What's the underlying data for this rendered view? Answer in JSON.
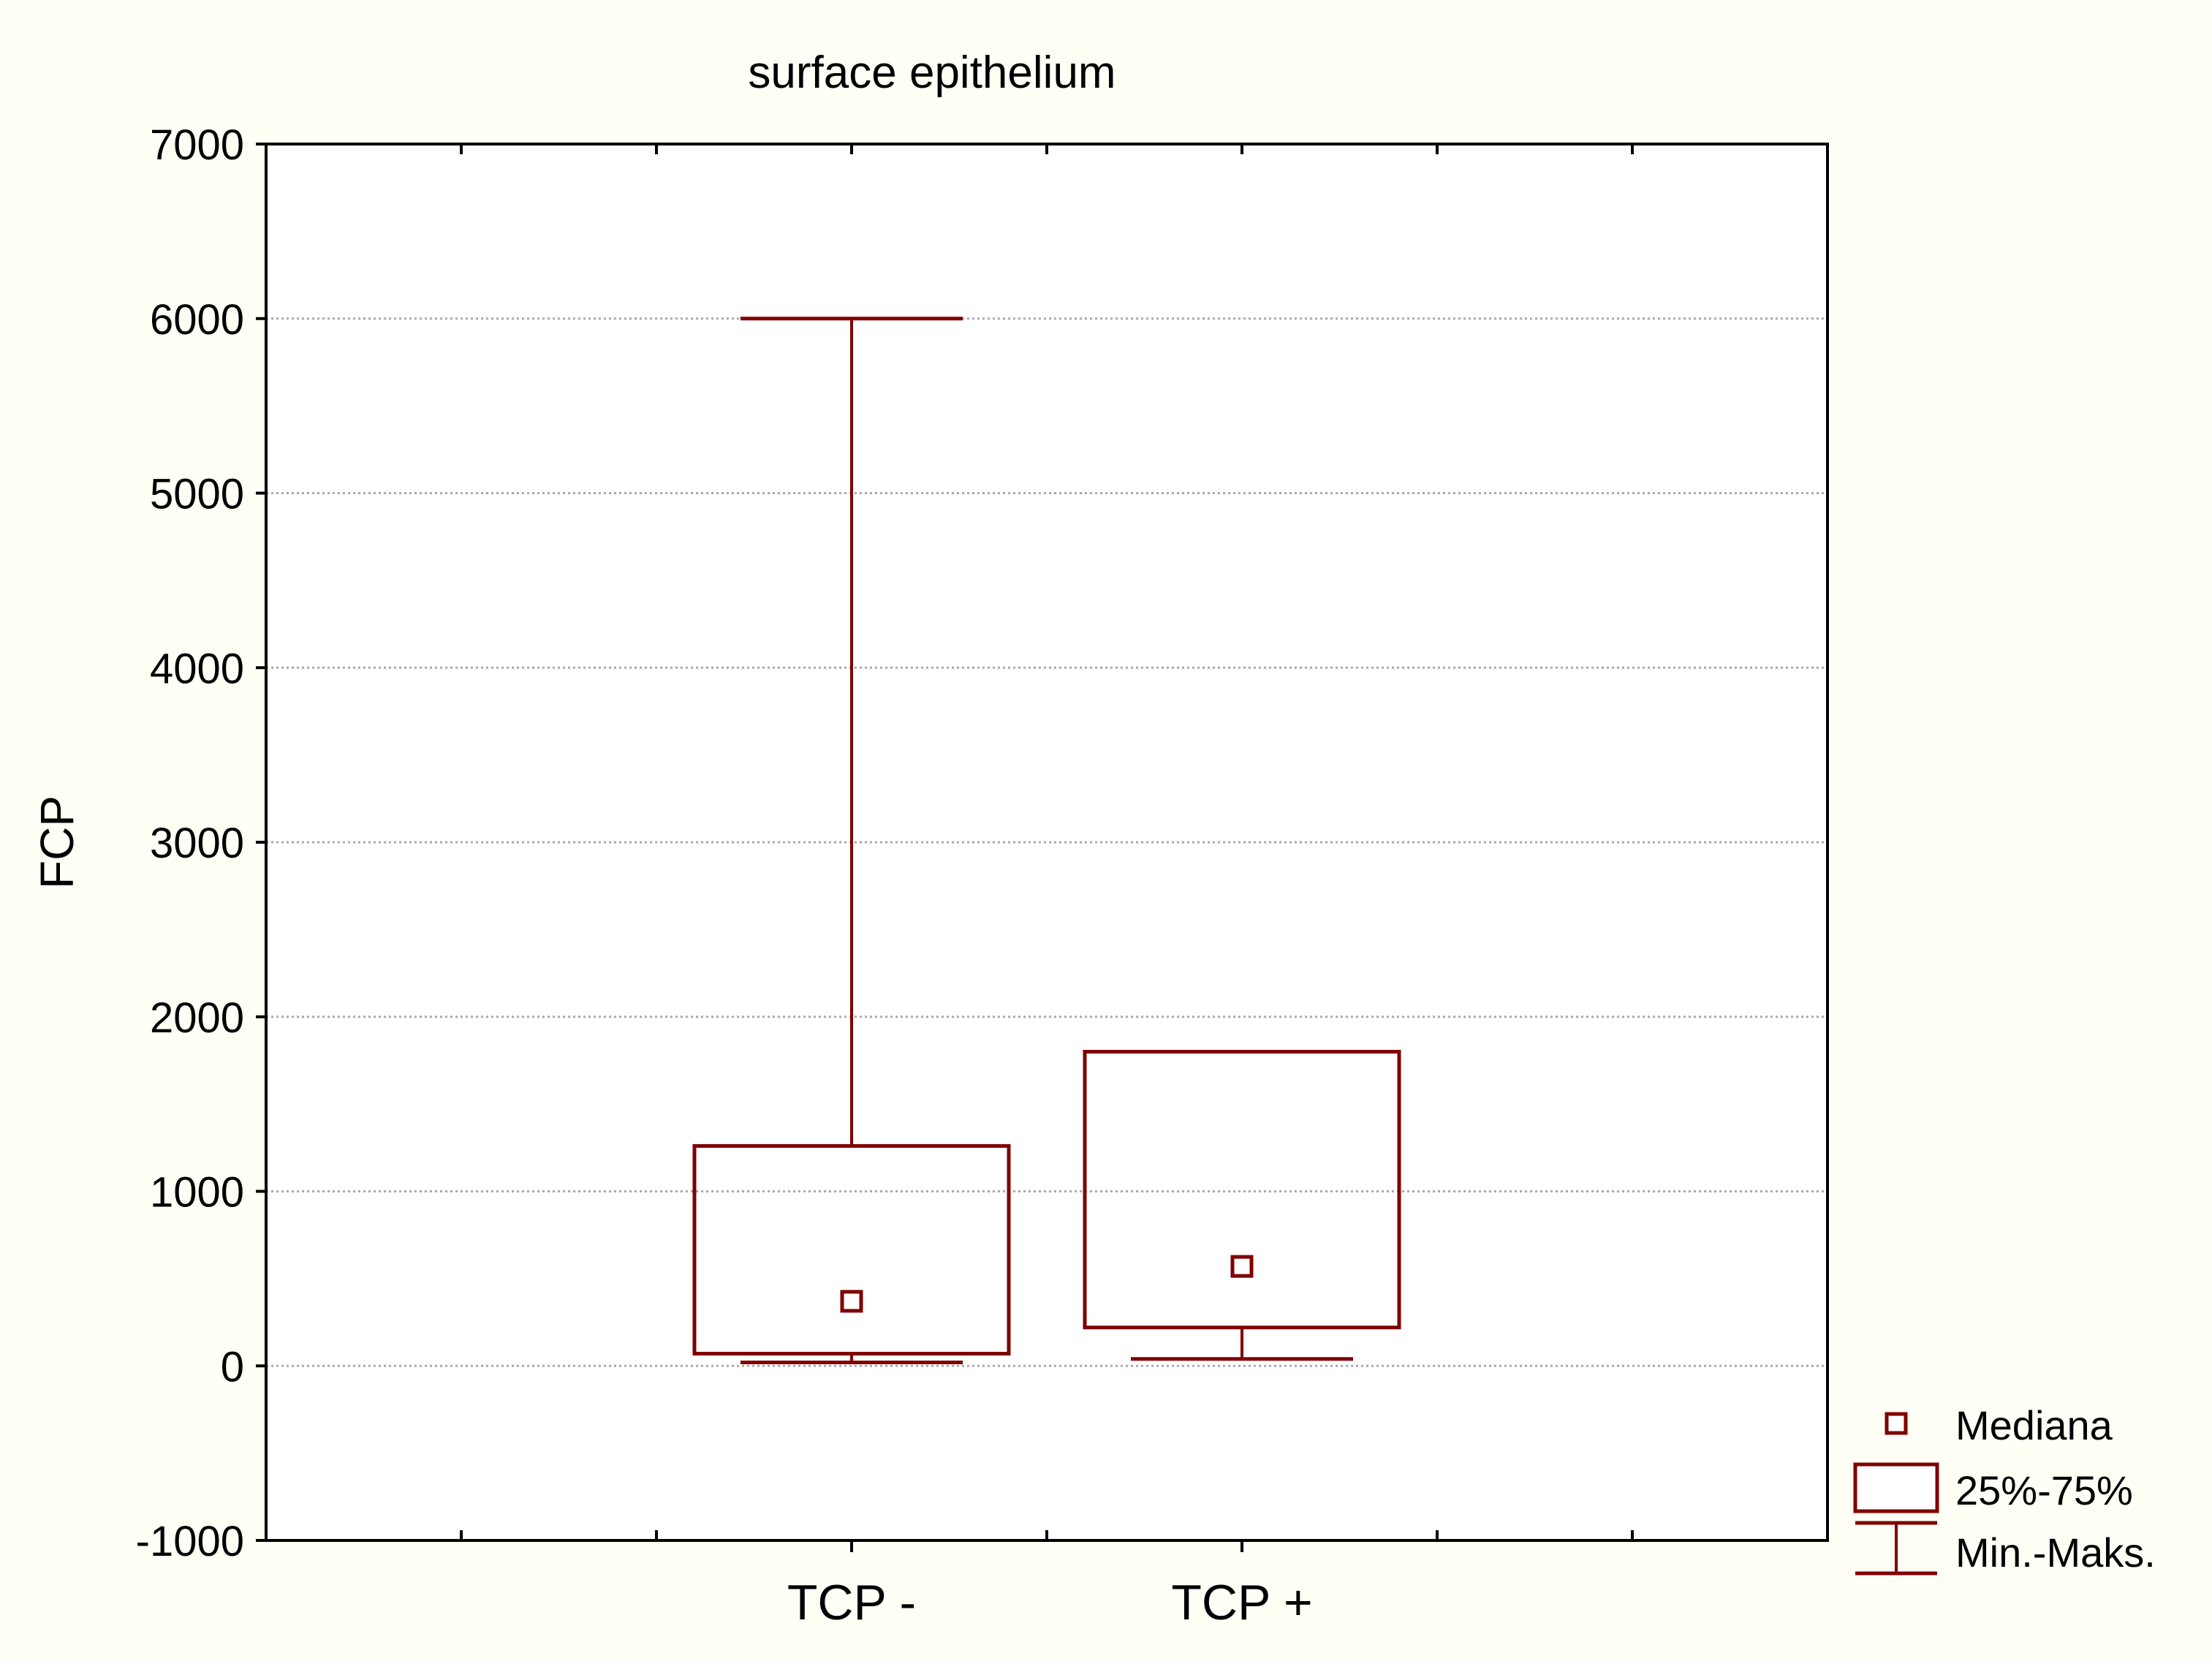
{
  "colors": {
    "background": "#fffff6",
    "plot_background": "#ffffff",
    "series": "#800000",
    "grid": "#a9a9a9",
    "axis": "#000000"
  },
  "chart_data": {
    "type": "boxplot",
    "title": "surface epithelium",
    "xlabel": "",
    "ylabel": "FCP",
    "ylim": [
      -1000,
      7000
    ],
    "yticks": [
      -1000,
      0,
      1000,
      2000,
      3000,
      4000,
      5000,
      6000,
      7000
    ],
    "ytick_labels": [
      "-1000",
      "0",
      "1000",
      "2000",
      "3000",
      "4000",
      "5000",
      "6000",
      "7000"
    ],
    "grid": "horizontal dotted",
    "categories": [
      "TCP -",
      "TCP +"
    ],
    "boxes": [
      {
        "category": "TCP -",
        "min": 20,
        "q1": 70,
        "median": 370,
        "q3": 1260,
        "max": 6000
      },
      {
        "category": "TCP +",
        "min": 40,
        "q1": 220,
        "median": 570,
        "q3": 1800,
        "max": 1800
      }
    ],
    "legend": {
      "position": "bottom-right, outside plot",
      "items": [
        {
          "symbol": "median-square-icon",
          "label": "Mediana"
        },
        {
          "symbol": "box-icon",
          "label": "25%-75%"
        },
        {
          "symbol": "whisker-icon",
          "label": "Min.-Maks."
        }
      ]
    }
  }
}
